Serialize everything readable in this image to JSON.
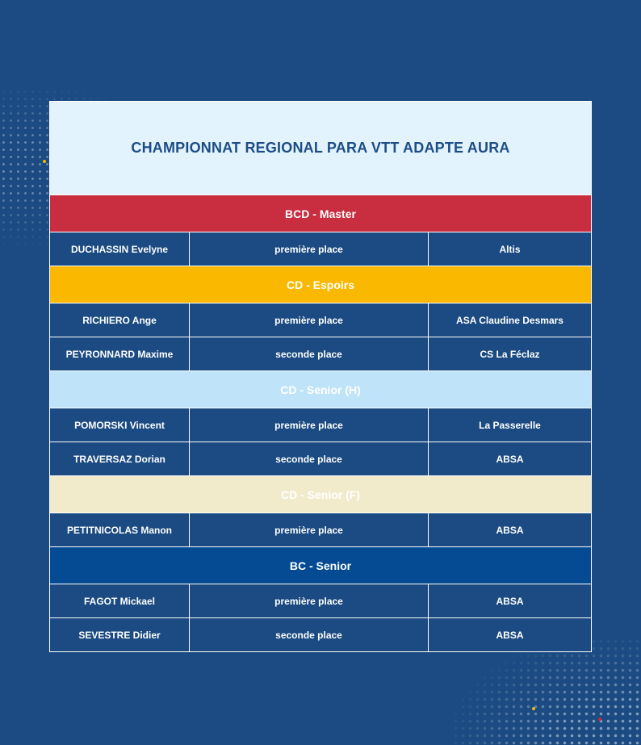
{
  "title": "CHAMPIONNAT REGIONAL PARA VTT ADAPTE AURA",
  "colors": {
    "background": "#1b4b82",
    "title_band": "#e3f3fd",
    "title_text": "#1d4d86"
  },
  "categories": [
    {
      "label": "BCD - Master",
      "color": "#c82d40",
      "rows": [
        {
          "name": "DUCHASSIN Evelyne",
          "place": "première place",
          "club": "Altis"
        }
      ]
    },
    {
      "label": "CD - Espoirs",
      "color": "#fbb800",
      "rows": [
        {
          "name": "RICHIERO Ange",
          "place": "première place",
          "club": "ASA Claudine Desmars"
        },
        {
          "name": "PEYRONNARD Maxime",
          "place": "seconde place",
          "club": "CS La Féclaz"
        }
      ]
    },
    {
      "label": "CD - Senior (H)",
      "color": "#bfe3f8",
      "rows": [
        {
          "name": "POMORSKI Vincent",
          "place": "première place",
          "club": "La Passerelle"
        },
        {
          "name": "TRAVERSAZ Dorian",
          "place": "seconde place",
          "club": "ABSA"
        }
      ]
    },
    {
      "label": "CD - Senior (F)",
      "color": "#f1ebcc",
      "rows": [
        {
          "name": "PETITNICOLAS Manon",
          "place": "première place",
          "club": "ABSA"
        }
      ]
    },
    {
      "label": "BC - Senior",
      "color": "#044b94",
      "rows": [
        {
          "name": "FAGOT Mickael",
          "place": "première place",
          "club": "ABSA"
        },
        {
          "name": "SEVESTRE Didier",
          "place": "seconde place",
          "club": "ABSA"
        }
      ]
    }
  ]
}
